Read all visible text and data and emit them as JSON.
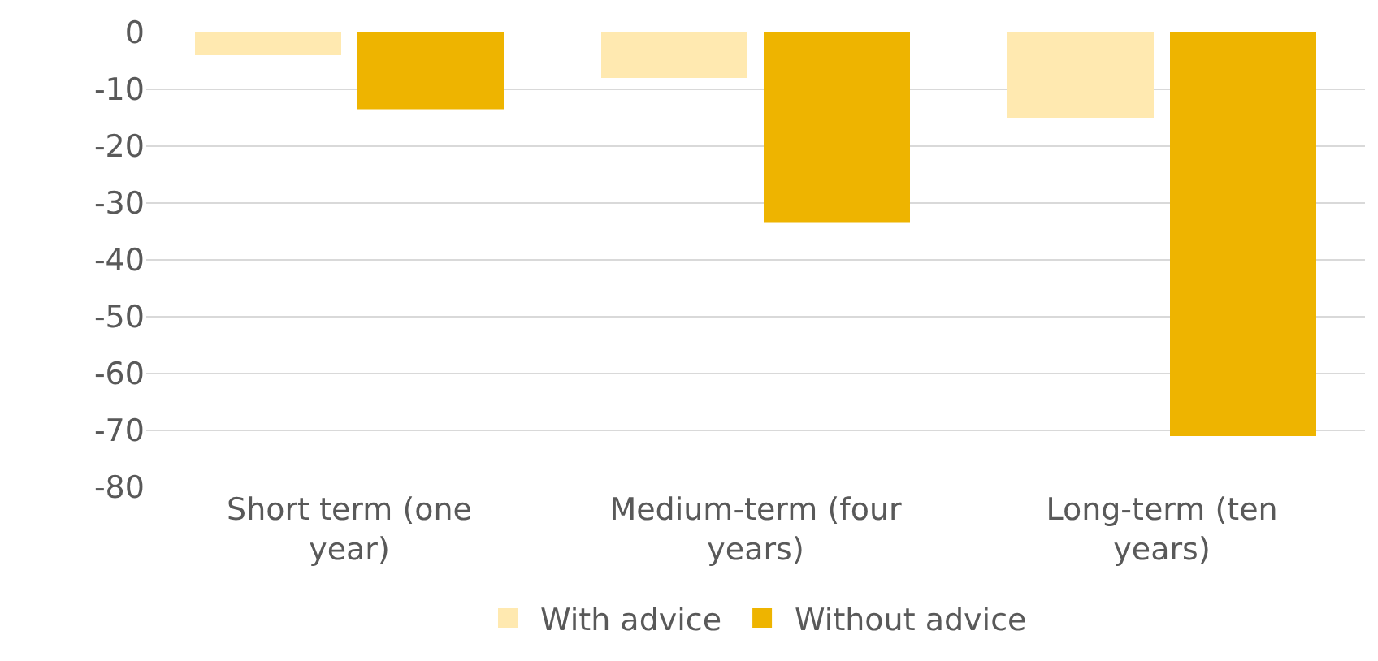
{
  "chart_data": {
    "type": "bar",
    "categories": [
      "Short term (one year)",
      "Medium-term (four years)",
      "Long-term (ten years)"
    ],
    "series": [
      {
        "name": "With advice",
        "color": "#ffe9b0",
        "values": [
          -4,
          -8,
          -15
        ]
      },
      {
        "name": "Without advice",
        "color": "#eeb400",
        "values": [
          -13.5,
          -33.5,
          -71
        ]
      }
    ],
    "ylim": [
      -80,
      0
    ],
    "yticks": [
      0,
      -10,
      -20,
      -30,
      -40,
      -50,
      -60,
      -70,
      -80
    ],
    "grid": "y",
    "legend": "bottom"
  }
}
